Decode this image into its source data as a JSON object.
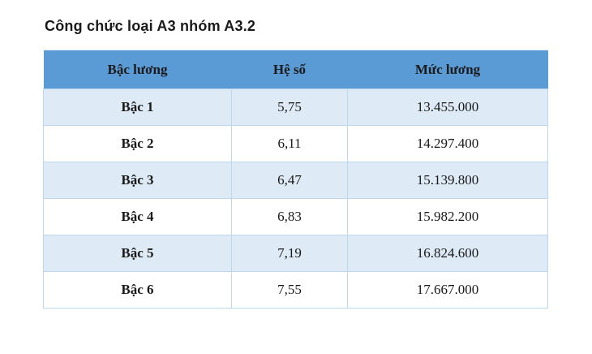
{
  "title": "Công chức loại A3 nhóm A3.2",
  "table": {
    "headers": [
      "Bậc lương",
      "Hệ số",
      "Mức lương"
    ],
    "rows": [
      [
        "Bậc 1",
        "5,75",
        "13.455.000"
      ],
      [
        "Bậc 2",
        "6,11",
        "14.297.400"
      ],
      [
        "Bậc 3",
        "6,47",
        "15.139.800"
      ],
      [
        "Bậc 4",
        "6,83",
        "15.982.200"
      ],
      [
        "Bậc 5",
        "7,19",
        "16.824.600"
      ],
      [
        "Bậc 6",
        "7,55",
        "17.667.000"
      ]
    ]
  },
  "colors": {
    "header_bg": "#5b9bd5",
    "row_alt_bg": "#deeaf6",
    "row_bg": "#ffffff",
    "border": "#bdd7ee",
    "text": "#1a1a1a"
  }
}
